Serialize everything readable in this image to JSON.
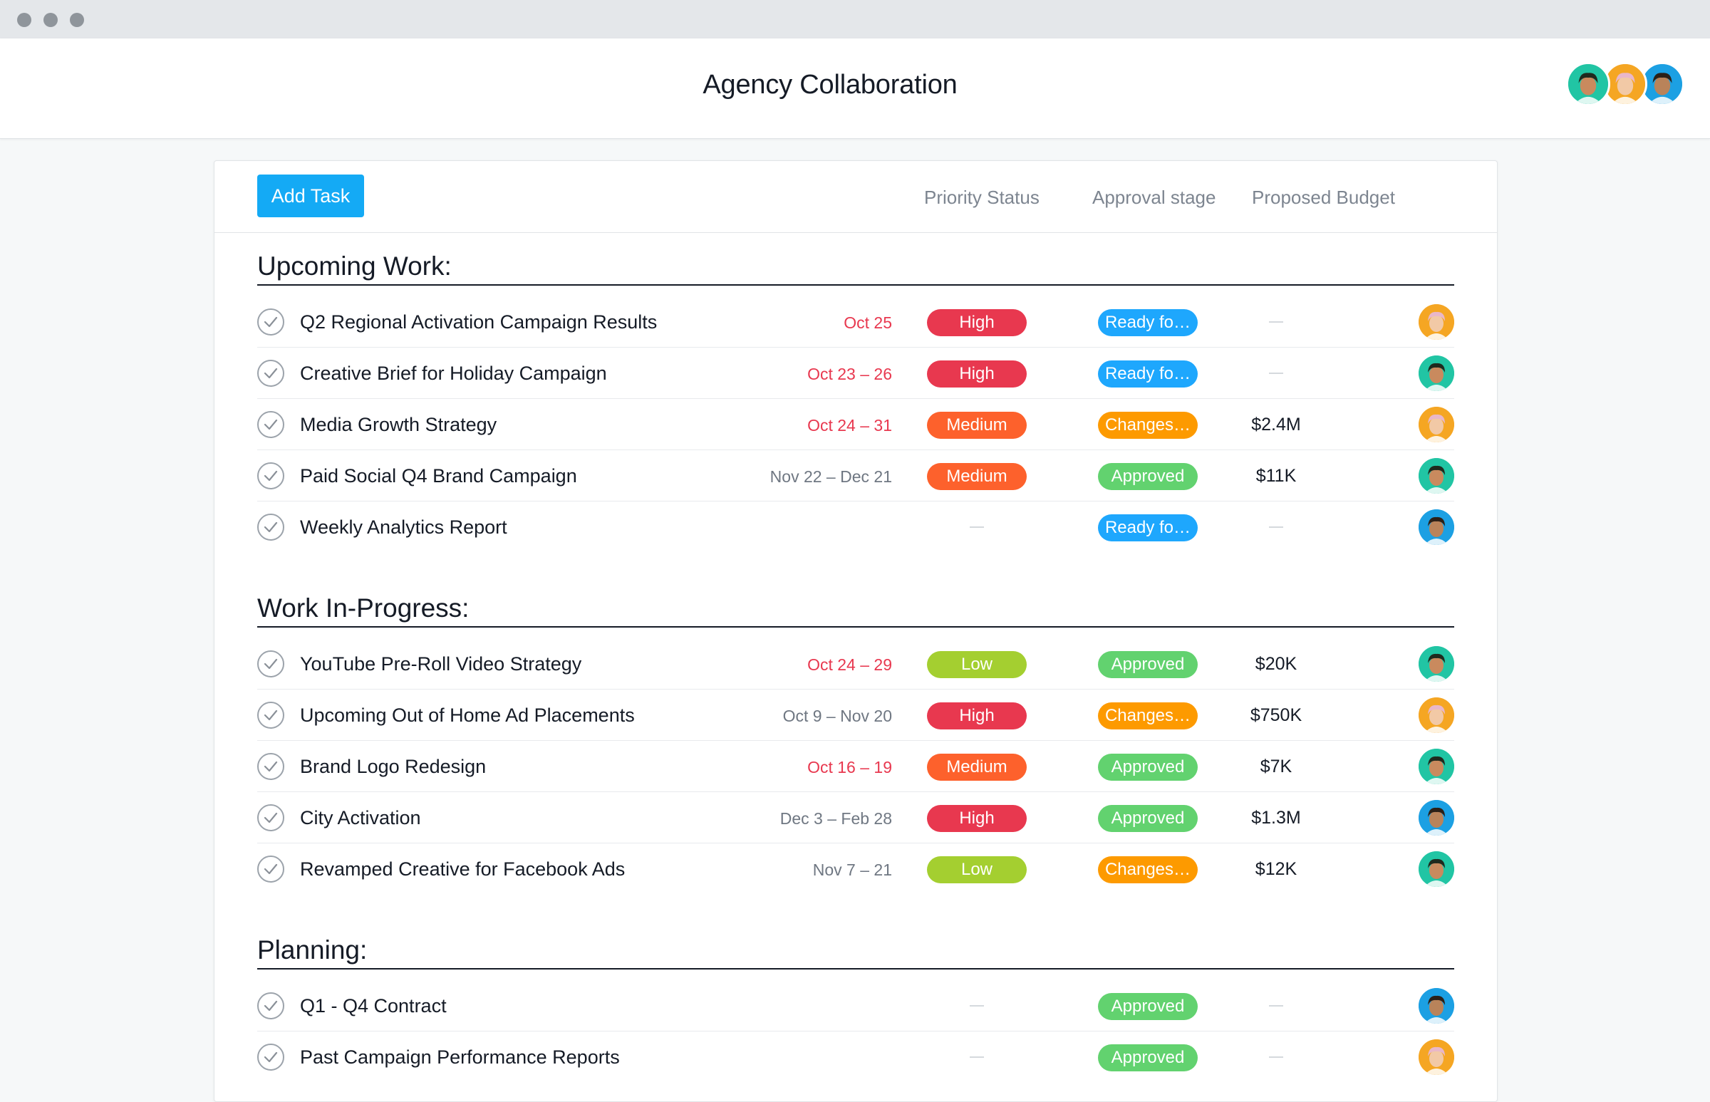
{
  "window": {
    "title": "Agency Collaboration",
    "members": [
      {
        "name": "member-1",
        "bg": "#21c5a4",
        "skin": "#c98a5e",
        "hair": "#1f2a1e"
      },
      {
        "name": "member-2",
        "bg": "#f5a623",
        "skin": "#f2c9a6",
        "hair": "#e9b7c9"
      },
      {
        "name": "member-3",
        "bg": "#1ca0e3",
        "skin": "#b9835a",
        "hair": "#2b2018"
      }
    ]
  },
  "toolbar": {
    "add_task_label": "Add Task",
    "columns": [
      "Priority Status",
      "Approval stage",
      "Proposed Budget"
    ]
  },
  "colors": {
    "High": "#e8384f",
    "Medium": "#fd612c",
    "Low": "#a4cf30",
    "Ready": "#1ea7fd",
    "Changes": "#fd9a00",
    "Approved": "#62d26f"
  },
  "sections": [
    {
      "title": "Upcoming Work:",
      "tasks": [
        {
          "name": "Q2 Regional Activation Campaign Results",
          "date": "Oct 25",
          "overdue": true,
          "priority": "High",
          "approval": "Ready fo…",
          "approval_key": "Ready",
          "budget": "",
          "assignee": 1
        },
        {
          "name": "Creative Brief for Holiday Campaign",
          "date": "Oct 23 – 26",
          "overdue": true,
          "priority": "High",
          "approval": "Ready fo…",
          "approval_key": "Ready",
          "budget": "",
          "assignee": 0
        },
        {
          "name": "Media Growth Strategy",
          "date": "Oct 24 – 31",
          "overdue": true,
          "priority": "Medium",
          "approval": "Changes…",
          "approval_key": "Changes",
          "budget": "$2.4M",
          "assignee": 1
        },
        {
          "name": "Paid Social Q4 Brand Campaign",
          "date": "Nov 22 – Dec 21",
          "overdue": false,
          "priority": "Medium",
          "approval": "Approved",
          "approval_key": "Approved",
          "budget": "$11K",
          "assignee": 0
        },
        {
          "name": "Weekly Analytics Report",
          "date": "",
          "overdue": false,
          "priority": "",
          "approval": "Ready fo…",
          "approval_key": "Ready",
          "budget": "",
          "assignee": 2
        }
      ]
    },
    {
      "title": "Work In-Progress:",
      "tasks": [
        {
          "name": "YouTube Pre-Roll Video Strategy",
          "date": "Oct 24 – 29",
          "overdue": true,
          "priority": "Low",
          "approval": "Approved",
          "approval_key": "Approved",
          "budget": "$20K",
          "assignee": 0
        },
        {
          "name": "Upcoming Out of Home Ad Placements",
          "date": "Oct 9 – Nov 20",
          "overdue": false,
          "priority": "High",
          "approval": "Changes…",
          "approval_key": "Changes",
          "budget": "$750K",
          "assignee": 1
        },
        {
          "name": "Brand Logo Redesign",
          "date": "Oct 16 – 19",
          "overdue": true,
          "priority": "Medium",
          "approval": "Approved",
          "approval_key": "Approved",
          "budget": "$7K",
          "assignee": 0
        },
        {
          "name": "City Activation",
          "date": "Dec 3 – Feb 28",
          "overdue": false,
          "priority": "High",
          "approval": "Approved",
          "approval_key": "Approved",
          "budget": "$1.3M",
          "assignee": 2
        },
        {
          "name": "Revamped Creative for Facebook Ads",
          "date": "Nov 7 – 21",
          "overdue": false,
          "priority": "Low",
          "approval": "Changes…",
          "approval_key": "Changes",
          "budget": "$12K",
          "assignee": 0
        }
      ]
    },
    {
      "title": "Planning:",
      "tasks": [
        {
          "name": "Q1 - Q4 Contract",
          "date": "",
          "overdue": false,
          "priority": "",
          "approval": "Approved",
          "approval_key": "Approved",
          "budget": "",
          "assignee": 2
        },
        {
          "name": "Past Campaign Performance Reports",
          "date": "",
          "overdue": false,
          "priority": "",
          "approval": "Approved",
          "approval_key": "Approved",
          "budget": "",
          "assignee": 1
        }
      ]
    }
  ]
}
